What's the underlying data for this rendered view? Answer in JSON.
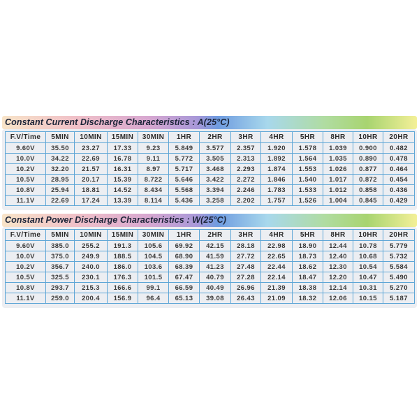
{
  "current_table": {
    "title": "Constant Current Discharge Characteristics : A(25°C)",
    "headers": [
      "F.V/Time",
      "5MIN",
      "10MIN",
      "15MIN",
      "30MIN",
      "1HR",
      "2HR",
      "3HR",
      "4HR",
      "5HR",
      "8HR",
      "10HR",
      "20HR"
    ],
    "rows": [
      [
        "9.60V",
        "35.50",
        "23.27",
        "17.33",
        "9.23",
        "5.849",
        "3.577",
        "2.357",
        "1.920",
        "1.578",
        "1.039",
        "0.900",
        "0.482"
      ],
      [
        "10.0V",
        "34.22",
        "22.69",
        "16.78",
        "9.11",
        "5.772",
        "3.505",
        "2.313",
        "1.892",
        "1.564",
        "1.035",
        "0.890",
        "0.478"
      ],
      [
        "10.2V",
        "32.20",
        "21.57",
        "16.31",
        "8.97",
        "5.717",
        "3.468",
        "2.293",
        "1.874",
        "1.553",
        "1.026",
        "0.877",
        "0.464"
      ],
      [
        "10.5V",
        "28.95",
        "20.17",
        "15.39",
        "8.722",
        "5.646",
        "3.422",
        "2.272",
        "1.846",
        "1.540",
        "1.017",
        "0.872",
        "0.454"
      ],
      [
        "10.8V",
        "25.94",
        "18.81",
        "14.52",
        "8.434",
        "5.568",
        "3.394",
        "2.246",
        "1.783",
        "1.533",
        "1.012",
        "0.858",
        "0.436"
      ],
      [
        "11.1V",
        "22.69",
        "17.24",
        "13.39",
        "8.114",
        "5.436",
        "3.258",
        "2.202",
        "1.757",
        "1.526",
        "1.004",
        "0.845",
        "0.429"
      ]
    ]
  },
  "power_table": {
    "title": "Constant Power Discharge Characteristics : W(25°C)",
    "headers": [
      "F.V/Time",
      "5MIN",
      "10MIN",
      "15MIN",
      "30MIN",
      "1HR",
      "2HR",
      "3HR",
      "4HR",
      "5HR",
      "8HR",
      "10HR",
      "20HR"
    ],
    "rows": [
      [
        "9.60V",
        "385.0",
        "255.2",
        "191.3",
        "105.6",
        "69.92",
        "42.15",
        "28.18",
        "22.98",
        "18.90",
        "12.44",
        "10.78",
        "5.779"
      ],
      [
        "10.0V",
        "375.0",
        "249.9",
        "188.5",
        "104.5",
        "68.90",
        "41.59",
        "27.72",
        "22.65",
        "18.73",
        "12.40",
        "10.68",
        "5.732"
      ],
      [
        "10.2V",
        "356.7",
        "240.0",
        "186.0",
        "103.6",
        "68.39",
        "41.23",
        "27.48",
        "22.44",
        "18.62",
        "12.30",
        "10.54",
        "5.584"
      ],
      [
        "10.5V",
        "325.5",
        "230.1",
        "176.3",
        "101.5",
        "67.47",
        "40.79",
        "27.28",
        "22.14",
        "18.47",
        "12.20",
        "10.47",
        "5.490"
      ],
      [
        "10.8V",
        "293.7",
        "215.3",
        "166.6",
        "99.1",
        "66.59",
        "40.49",
        "26.96",
        "21.39",
        "18.38",
        "12.14",
        "10.31",
        "5.270"
      ],
      [
        "11.1V",
        "259.0",
        "200.4",
        "156.9",
        "96.4",
        "65.13",
        "39.08",
        "26.43",
        "21.09",
        "18.32",
        "12.06",
        "10.15",
        "5.187"
      ]
    ]
  },
  "colors": {
    "grid": "#5ea6d6",
    "panel": "#eceef2",
    "title": "#1c2438"
  }
}
